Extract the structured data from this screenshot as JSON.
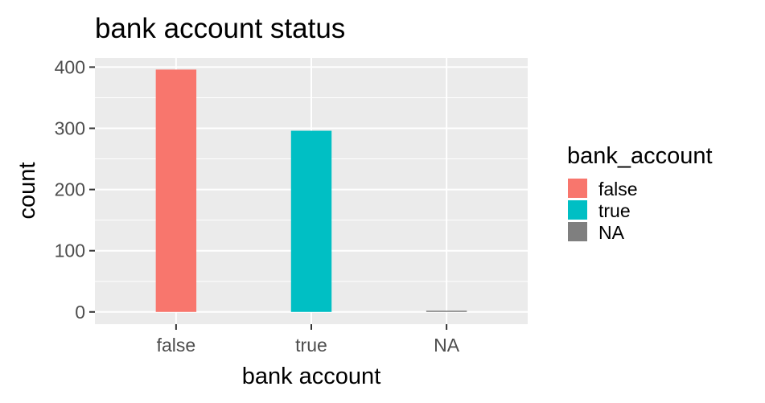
{
  "chart_data": {
    "type": "bar",
    "title": "bank account status",
    "xlabel": "bank account",
    "ylabel": "count",
    "categories": [
      "false",
      "true",
      "NA"
    ],
    "values": [
      396,
      296,
      2
    ],
    "colors": [
      "#F8766D",
      "#00BFC4",
      "#7F7F7F"
    ],
    "ylim": [
      -20,
      415
    ],
    "yticks": [
      0,
      100,
      200,
      300,
      400
    ],
    "grid": true,
    "legend": {
      "title": "bank_account",
      "position": "right",
      "items": [
        {
          "label": "false",
          "color": "#F8766D"
        },
        {
          "label": "true",
          "color": "#00BFC4"
        },
        {
          "label": "NA",
          "color": "#7F7F7F"
        }
      ]
    }
  }
}
